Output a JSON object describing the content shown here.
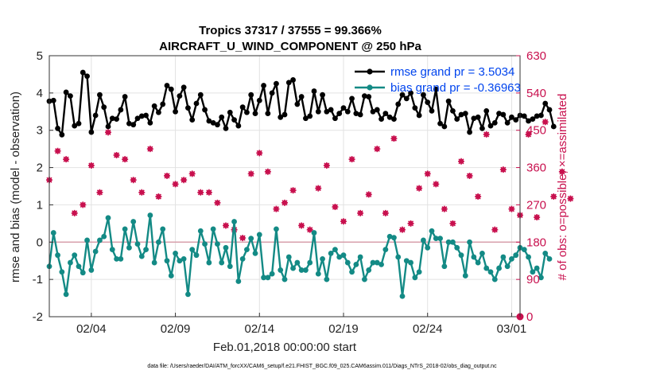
{
  "chart_data": {
    "type": "line",
    "title": "Tropics 37317 / 37555 = 99.366%",
    "subtitle": "AIRCRAFT_U_WIND_COMPONENT @ 250 hPa",
    "xlabel": "Feb.01,2018 00:00:00 start",
    "ylabel": "rmse and bias (model - observation)",
    "y2label": "# of obs: o=possible; ×=assimilated",
    "footer": "data file: /Users/raeder/DAI/ATM_forcXX/CAM6_setup/f.e21.FHIST_BGC.f09_025.CAM6assim.011/Diags_NTrS_2018-02/obs_diag_output.nc",
    "xlim": [
      1,
      29
    ],
    "ylim": [
      -2,
      5
    ],
    "y2lim": [
      0,
      630
    ],
    "x_ticks": [
      {
        "value": 3.5,
        "label": "02/04"
      },
      {
        "value": 8.5,
        "label": "02/09"
      },
      {
        "value": 13.5,
        "label": "02/14"
      },
      {
        "value": 18.5,
        "label": "02/19"
      },
      {
        "value": 23.5,
        "label": "02/24"
      },
      {
        "value": 28.5,
        "label": "03/01"
      }
    ],
    "y_ticks": [
      "-2",
      "-1",
      "0",
      "1",
      "2",
      "3",
      "4",
      "5"
    ],
    "y2_ticks": [
      "0",
      "90",
      "180",
      "270",
      "360",
      "450",
      "540",
      "630"
    ],
    "x_start": 1.0,
    "x_step": 0.25,
    "series": [
      {
        "name": "rmse grand pr = 3.5034",
        "color": "#000000",
        "values": [
          3.78,
          3.8,
          3.05,
          2.88,
          4.02,
          3.92,
          3.12,
          3.18,
          4.55,
          4.45,
          2.95,
          3.4,
          3.95,
          3.62,
          3.1,
          3.32,
          3.3,
          3.55,
          3.9,
          3.18,
          3.15,
          3.32,
          3.38,
          3.4,
          3.2,
          3.65,
          3.48,
          3.7,
          4.2,
          4.1,
          3.5,
          3.92,
          4.15,
          3.6,
          3.28,
          3.72,
          3.95,
          3.55,
          3.25,
          3.2,
          3.15,
          3.35,
          3.05,
          3.48,
          3.28,
          3.12,
          3.62,
          3.48,
          3.95,
          3.45,
          3.8,
          4.2,
          3.45,
          4.0,
          4.25,
          3.35,
          3.42,
          4.28,
          4.35,
          3.7,
          3.9,
          3.32,
          3.38,
          4.05,
          3.5,
          3.95,
          3.5,
          3.55,
          3.32,
          3.45,
          3.6,
          3.5,
          3.85,
          3.45,
          3.42,
          3.92,
          3.9,
          3.5,
          3.55,
          3.3,
          3.45,
          3.35,
          3.3,
          3.7,
          3.95,
          3.85,
          4.0,
          3.6,
          3.4,
          3.95,
          3.75,
          3.52,
          4.1,
          3.18,
          3.1,
          3.78,
          3.52,
          3.3,
          3.42,
          3.45,
          2.95,
          3.32,
          3.35,
          3.05,
          3.52,
          3.12,
          3.2,
          3.45,
          3.42,
          3.2,
          3.35,
          3.28,
          3.4,
          3.38,
          3.25,
          3.3,
          3.38,
          3.4,
          3.72,
          3.55,
          3.1
        ]
      },
      {
        "name": "bias grand pr = -0.36963",
        "color": "#138a85",
        "values": [
          -0.65,
          0.25,
          -0.35,
          -0.8,
          -1.4,
          -0.55,
          -0.35,
          -0.65,
          -0.82,
          0.05,
          -0.75,
          -0.25,
          0.05,
          0.15,
          0.65,
          -0.2,
          -0.45,
          -0.45,
          0.35,
          -0.15,
          0.55,
          -0.05,
          -0.38,
          -0.2,
          0.72,
          -0.55,
          0.0,
          0.35,
          -0.5,
          -0.9,
          -0.3,
          -0.5,
          -0.45,
          -1.4,
          -0.2,
          -0.35,
          0.3,
          -0.05,
          -0.55,
          0.35,
          -0.05,
          -0.55,
          -0.15,
          -0.65,
          0.55,
          -1.05,
          -0.45,
          -0.2,
          0.1,
          -0.3,
          0.2,
          -0.95,
          -0.95,
          -0.85,
          0.35,
          -0.75,
          -1.0,
          -0.4,
          -0.7,
          -0.55,
          -0.75,
          -0.75,
          -0.55,
          0.25,
          -0.85,
          -0.45,
          -1.0,
          -0.3,
          -0.2,
          -0.4,
          -0.35,
          -0.55,
          -0.8,
          -0.6,
          -0.4,
          -1.0,
          -0.75,
          -0.55,
          -0.55,
          -0.6,
          -0.2,
          0.15,
          0.12,
          -0.4,
          -1.45,
          -0.5,
          -0.55,
          -0.95,
          -0.8,
          0.05,
          -0.15,
          0.3,
          0.1,
          0.1,
          -0.65,
          0.0,
          0.0,
          -0.15,
          -0.35,
          -0.9,
          0.0,
          -0.4,
          -0.55,
          -0.3,
          -0.7,
          -0.8,
          -1.0,
          -0.7,
          -0.4,
          -0.65,
          -0.45,
          -0.35,
          -0.15,
          -0.2,
          -0.4,
          -0.8,
          -0.7,
          -0.95,
          -0.3,
          -0.45
        ]
      }
    ],
    "obs_series": {
      "name": "# of obs",
      "color": "#c8104e",
      "x_start": 1.0,
      "x_step": 0.5,
      "values": [
        330,
        400,
        380,
        250,
        270,
        365,
        300,
        445,
        390,
        380,
        330,
        300,
        405,
        290,
        340,
        320,
        330,
        345,
        300,
        300,
        275,
        220,
        210,
        190,
        345,
        395,
        350,
        260,
        275,
        305,
        220,
        210,
        310,
        365,
        265,
        230,
        380,
        250,
        295,
        405,
        250,
        430,
        210,
        225,
        310,
        345,
        320,
        260,
        225,
        375,
        340,
        290,
        440,
        210,
        355,
        260,
        245,
        440,
        240,
        470,
        290,
        350,
        285
      ]
    }
  },
  "legend": {
    "rmse_label": "rmse grand pr = 3.5034",
    "bias_label": "bias grand pr = -0.36963"
  }
}
